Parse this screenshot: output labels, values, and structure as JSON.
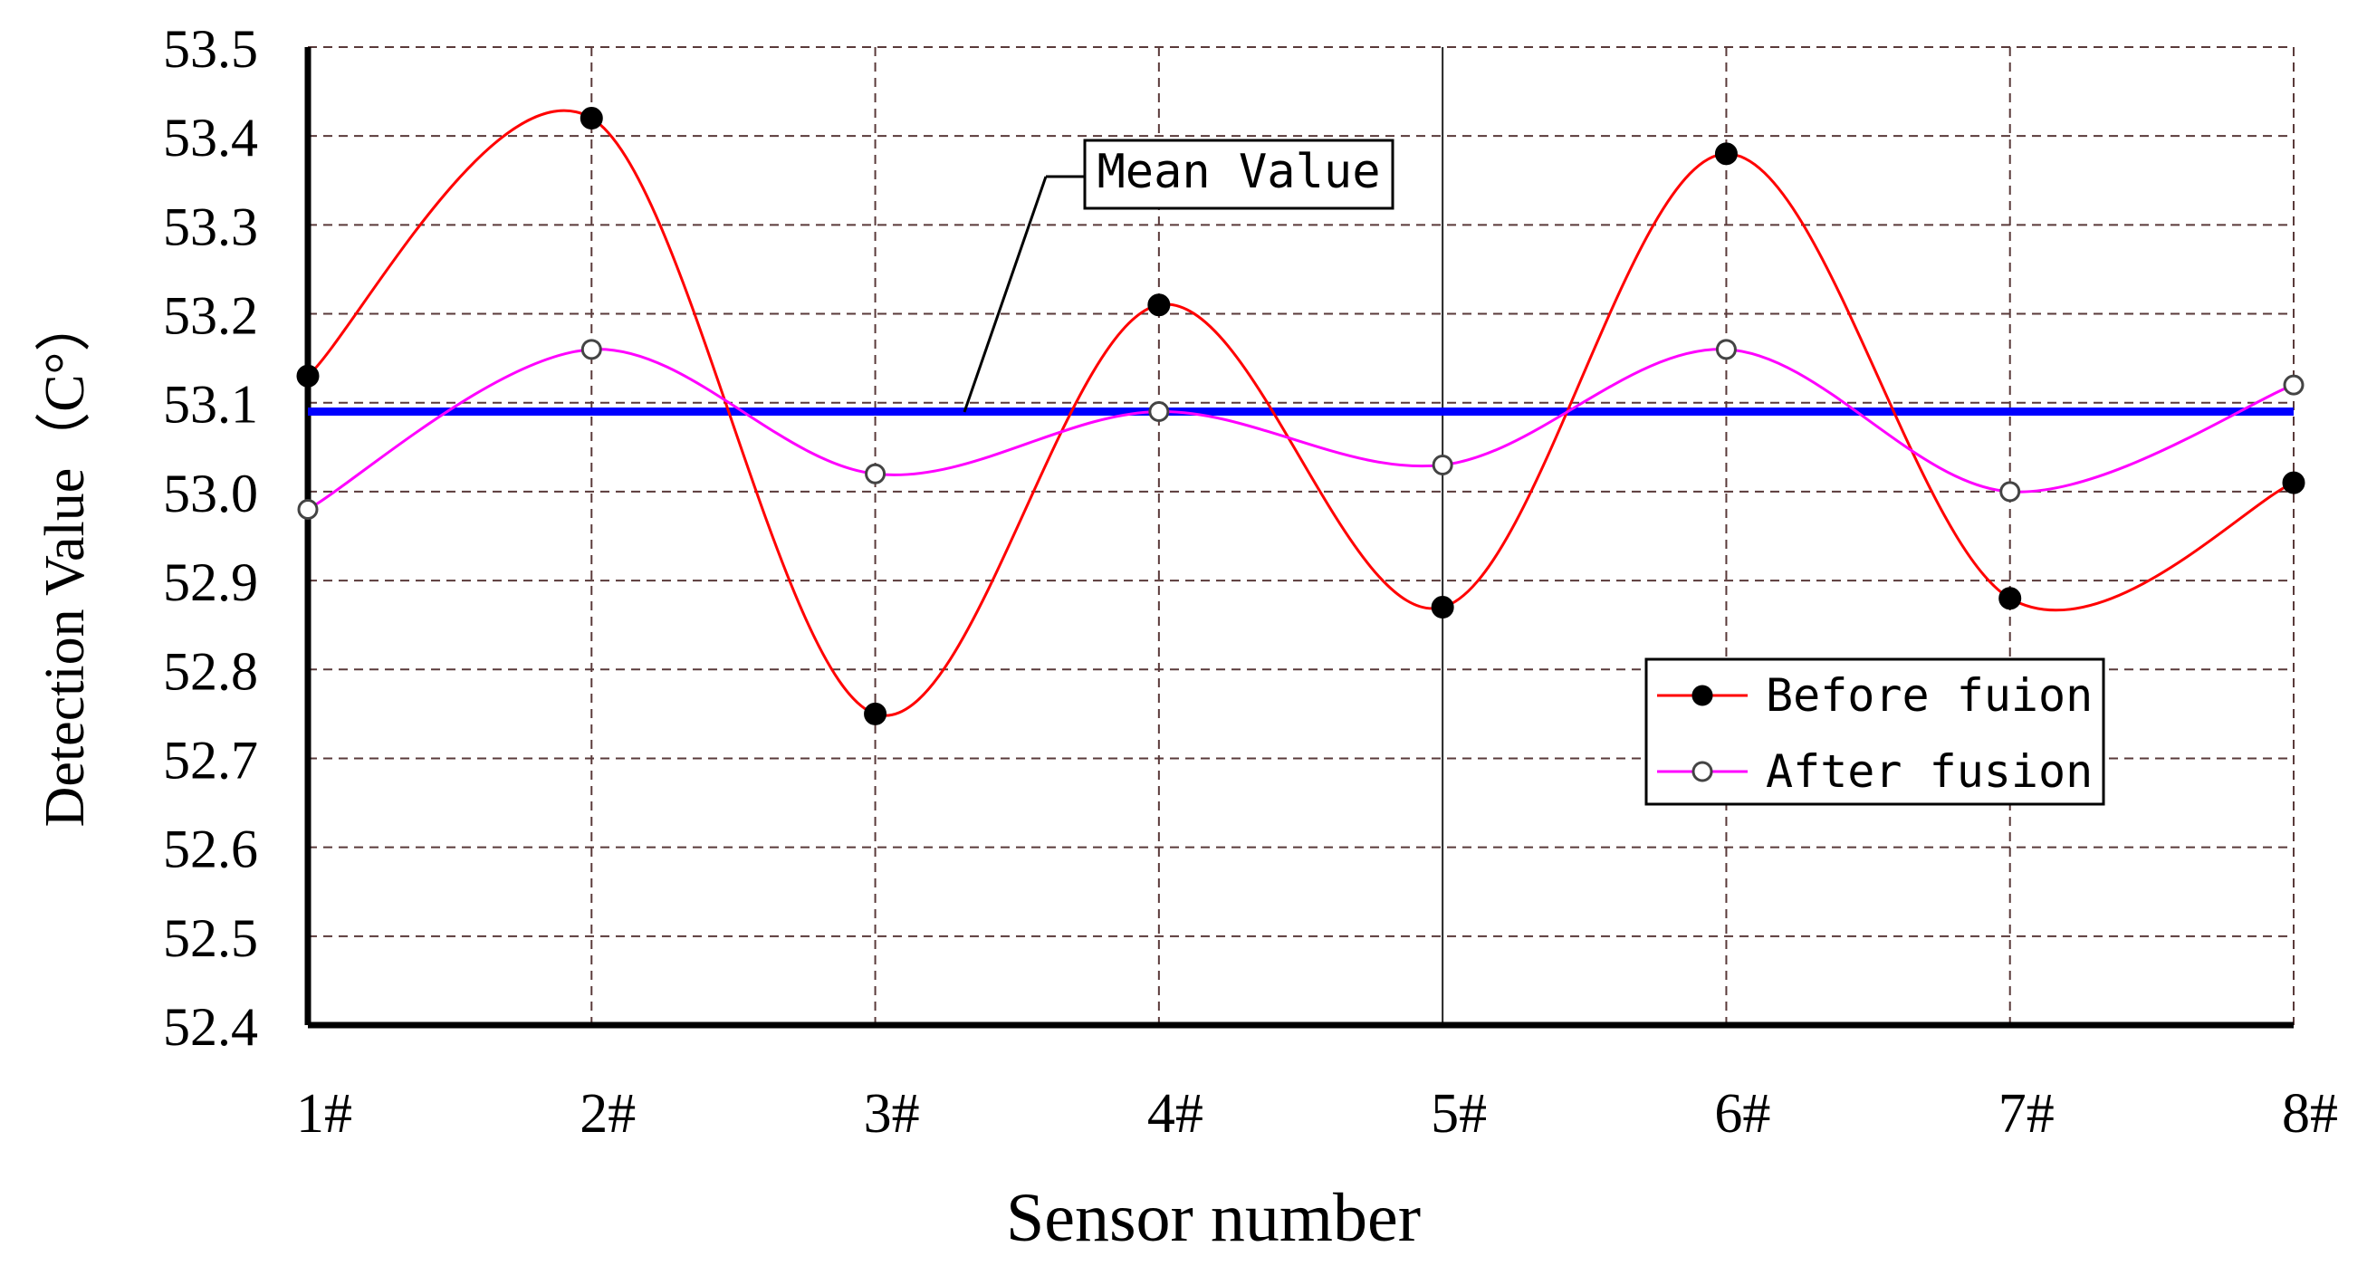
{
  "chart_data": {
    "type": "line",
    "xlabel": "Sensor number",
    "ylabel": "Detection Value（C°）",
    "categories": [
      "1#",
      "2#",
      "3#",
      "4#",
      "5#",
      "6#",
      "7#",
      "8#"
    ],
    "yticks": [
      "53.5",
      "53.4",
      "53.3",
      "53.2",
      "53.1",
      "53.0",
      "52.9",
      "52.8",
      "52.7",
      "52.6",
      "52.5",
      "52.4"
    ],
    "ylim": [
      52.4,
      53.5
    ],
    "grid": true,
    "legend_position": "lower-right",
    "series": [
      {
        "name": "Before fuion",
        "color": "#ff0000",
        "marker": "filled-circle",
        "values": [
          53.13,
          53.42,
          52.75,
          53.21,
          52.87,
          53.38,
          52.88,
          53.01
        ]
      },
      {
        "name": "After fusion",
        "color": "#ff00ff",
        "marker": "open-circle",
        "values": [
          52.98,
          53.16,
          53.02,
          53.09,
          53.03,
          53.16,
          53.0,
          53.12
        ]
      }
    ],
    "mean_line": {
      "value": 53.09,
      "color": "#0000ff",
      "label": "Mean Value"
    }
  }
}
